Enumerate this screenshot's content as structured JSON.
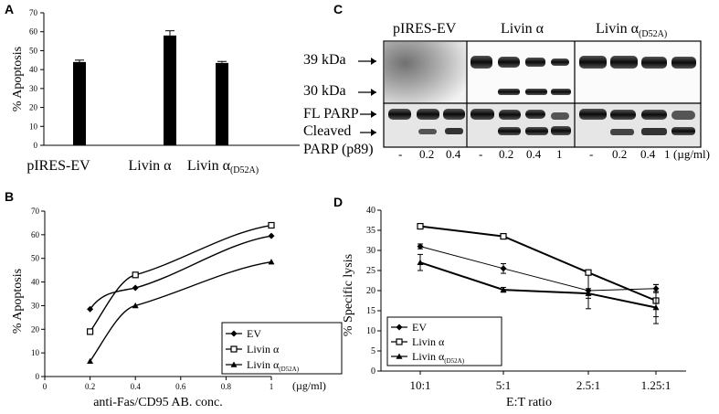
{
  "panels": {
    "A": {
      "letter": "A"
    },
    "B": {
      "letter": "B"
    },
    "C": {
      "letter": "C"
    },
    "D": {
      "letter": "D"
    }
  },
  "blot": {
    "groups": [
      "pIRES-EV",
      "Livin α",
      "Livin α(D52A)"
    ],
    "marker_39": "39 kDa",
    "marker_30": "30 kDa",
    "fl_parp": "FL PARP",
    "cleaved_line1": "Cleaved",
    "cleaved_line2": "PARP (p89)",
    "lane_labels": [
      "-",
      "0.2",
      "0.4",
      "-",
      "0.2",
      "0.4",
      "1",
      "-",
      "0.2",
      "0.4",
      "1"
    ],
    "unit": "(µg/ml)"
  },
  "chart_data": [
    {
      "panel": "A",
      "type": "bar",
      "ylabel": "% Apoptosis",
      "ylim": [
        0,
        70
      ],
      "yticks": [
        0,
        10,
        20,
        30,
        40,
        50,
        60,
        70
      ],
      "categories": [
        "pIRES-EV",
        "Livin α",
        "Livin α(D52A)"
      ],
      "values": [
        44,
        58,
        43.5
      ],
      "errors": [
        1,
        2.5,
        0.8
      ],
      "color": "#000000"
    },
    {
      "panel": "B",
      "type": "line",
      "xlabel": "anti-Fas/CD95 AB. conc.",
      "xunit": "(µg/ml)",
      "ylabel": "% Apoptosis",
      "xlim": [
        0,
        1
      ],
      "ylim": [
        0,
        70
      ],
      "xticks": [
        0,
        0.2,
        0.4,
        0.6,
        0.8,
        1
      ],
      "yticks": [
        0,
        10,
        20,
        30,
        40,
        50,
        60,
        70
      ],
      "x": [
        0.2,
        0.4,
        1
      ],
      "series": [
        {
          "name": "EV",
          "marker": "diamond",
          "values": [
            28.5,
            37.5,
            59.5
          ]
        },
        {
          "name": "Livin α",
          "marker": "square-open",
          "values": [
            19,
            43,
            64
          ]
        },
        {
          "name": "Livin α(D52A)",
          "marker": "triangle",
          "values": [
            6.5,
            30,
            48.5
          ]
        }
      ],
      "legend": "bottom-right"
    },
    {
      "panel": "D",
      "type": "line",
      "xlabel": "E:T ratio",
      "ylabel": "% Specific lysis",
      "ylim": [
        0,
        40
      ],
      "yticks": [
        0,
        5,
        10,
        15,
        20,
        25,
        30,
        35,
        40
      ],
      "categories": [
        "10:1",
        "5:1",
        "2.5:1",
        "1.25:1"
      ],
      "series": [
        {
          "name": "EV",
          "marker": "diamond",
          "values": [
            31,
            25.5,
            20,
            20.5
          ],
          "errors": [
            0.6,
            1.2,
            4.5,
            1
          ]
        },
        {
          "name": "Livin α",
          "marker": "square-open",
          "values": [
            36,
            33.5,
            24.5,
            17.5
          ],
          "errors": [
            0.5,
            0.5,
            0.5,
            4
          ]
        },
        {
          "name": "Livin α(D52A)",
          "marker": "triangle",
          "values": [
            27,
            20.2,
            19.3,
            15.8
          ],
          "errors": [
            2,
            0.6,
            1.2,
            4
          ]
        }
      ],
      "legend": "bottom-left"
    }
  ]
}
